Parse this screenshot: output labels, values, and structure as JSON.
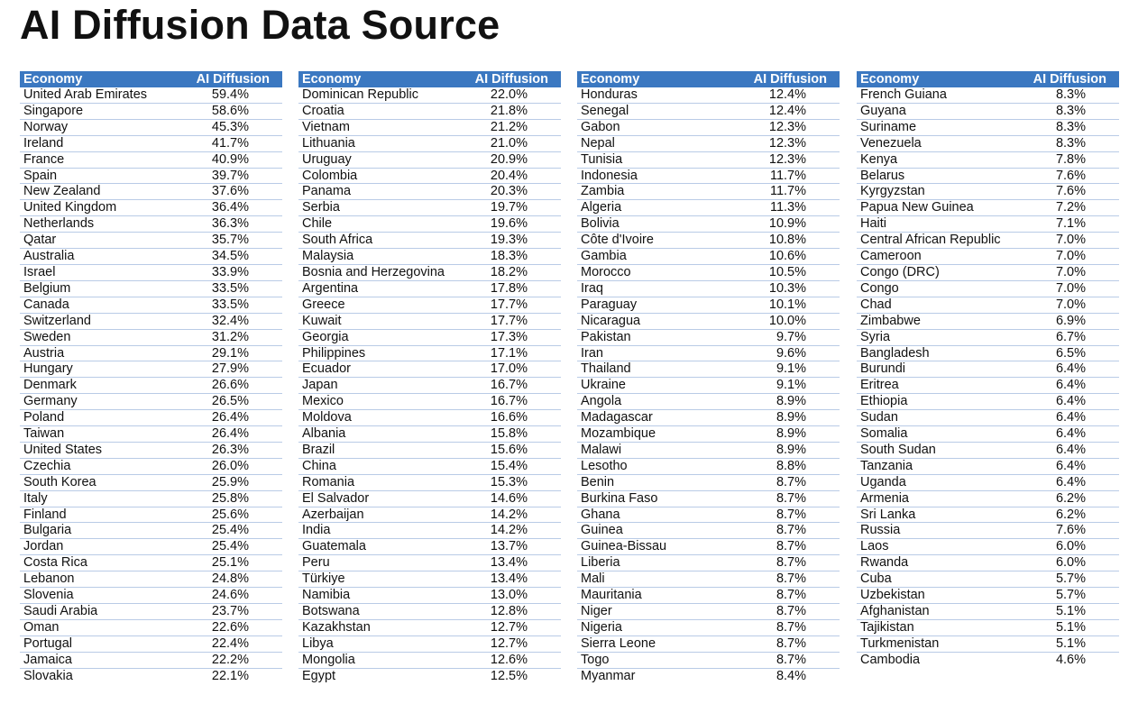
{
  "title": "AI Diffusion Data Source",
  "header": {
    "economy": "Economy",
    "value": "AI Diffusion"
  },
  "colors": {
    "header_bg": "#3b78c1",
    "row_line": "#b9cbe6"
  },
  "tables": [
    [
      [
        "United Arab Emirates",
        "59.4%"
      ],
      [
        "Singapore",
        "58.6%"
      ],
      [
        "Norway",
        "45.3%"
      ],
      [
        "Ireland",
        "41.7%"
      ],
      [
        "France",
        "40.9%"
      ],
      [
        "Spain",
        "39.7%"
      ],
      [
        "New Zealand",
        "37.6%"
      ],
      [
        "United Kingdom",
        "36.4%"
      ],
      [
        "Netherlands",
        "36.3%"
      ],
      [
        "Qatar",
        "35.7%"
      ],
      [
        "Australia",
        "34.5%"
      ],
      [
        "Israel",
        "33.9%"
      ],
      [
        "Belgium",
        "33.5%"
      ],
      [
        "Canada",
        "33.5%"
      ],
      [
        "Switzerland",
        "32.4%"
      ],
      [
        "Sweden",
        "31.2%"
      ],
      [
        "Austria",
        "29.1%"
      ],
      [
        "Hungary",
        "27.9%"
      ],
      [
        "Denmark",
        "26.6%"
      ],
      [
        "Germany",
        "26.5%"
      ],
      [
        "Poland",
        "26.4%"
      ],
      [
        "Taiwan",
        "26.4%"
      ],
      [
        "United States",
        "26.3%"
      ],
      [
        "Czechia",
        "26.0%"
      ],
      [
        "South Korea",
        "25.9%"
      ],
      [
        "Italy",
        "25.8%"
      ],
      [
        "Finland",
        "25.6%"
      ],
      [
        "Bulgaria",
        "25.4%"
      ],
      [
        "Jordan",
        "25.4%"
      ],
      [
        "Costa Rica",
        "25.1%"
      ],
      [
        "Lebanon",
        "24.8%"
      ],
      [
        "Slovenia",
        "24.6%"
      ],
      [
        "Saudi Arabia",
        "23.7%"
      ],
      [
        "Oman",
        "22.6%"
      ],
      [
        "Portugal",
        "22.4%"
      ],
      [
        "Jamaica",
        "22.2%"
      ],
      [
        "Slovakia",
        "22.1%"
      ]
    ],
    [
      [
        "Dominican Republic",
        "22.0%"
      ],
      [
        "Croatia",
        "21.8%"
      ],
      [
        "Vietnam",
        "21.2%"
      ],
      [
        "Lithuania",
        "21.0%"
      ],
      [
        "Uruguay",
        "20.9%"
      ],
      [
        "Colombia",
        "20.4%"
      ],
      [
        "Panama",
        "20.3%"
      ],
      [
        "Serbia",
        "19.7%"
      ],
      [
        "Chile",
        "19.6%"
      ],
      [
        "South Africa",
        "19.3%"
      ],
      [
        "Malaysia",
        "18.3%"
      ],
      [
        "Bosnia and Herzegovina",
        "18.2%"
      ],
      [
        "Argentina",
        "17.8%"
      ],
      [
        "Greece",
        "17.7%"
      ],
      [
        "Kuwait",
        "17.7%"
      ],
      [
        "Georgia",
        "17.3%"
      ],
      [
        "Philippines",
        "17.1%"
      ],
      [
        "Ecuador",
        "17.0%"
      ],
      [
        "Japan",
        "16.7%"
      ],
      [
        "Mexico",
        "16.7%"
      ],
      [
        "Moldova",
        "16.6%"
      ],
      [
        "Albania",
        "15.8%"
      ],
      [
        "Brazil",
        "15.6%"
      ],
      [
        "China",
        "15.4%"
      ],
      [
        "Romania",
        "15.3%"
      ],
      [
        "El Salvador",
        "14.6%"
      ],
      [
        "Azerbaijan",
        "14.2%"
      ],
      [
        "India",
        "14.2%"
      ],
      [
        "Guatemala",
        "13.7%"
      ],
      [
        "Peru",
        "13.4%"
      ],
      [
        "Türkiye",
        "13.4%"
      ],
      [
        "Namibia",
        "13.0%"
      ],
      [
        "Botswana",
        "12.8%"
      ],
      [
        "Kazakhstan",
        "12.7%"
      ],
      [
        "Libya",
        "12.7%"
      ],
      [
        "Mongolia",
        "12.6%"
      ],
      [
        "Egypt",
        "12.5%"
      ]
    ],
    [
      [
        "Honduras",
        "12.4%"
      ],
      [
        "Senegal",
        "12.4%"
      ],
      [
        "Gabon",
        "12.3%"
      ],
      [
        "Nepal",
        "12.3%"
      ],
      [
        "Tunisia",
        "12.3%"
      ],
      [
        "Indonesia",
        "11.7%"
      ],
      [
        "Zambia",
        "11.7%"
      ],
      [
        "Algeria",
        "11.3%"
      ],
      [
        "Bolivia",
        "10.9%"
      ],
      [
        "Côte d'Ivoire",
        "10.8%"
      ],
      [
        "Gambia",
        "10.6%"
      ],
      [
        "Morocco",
        "10.5%"
      ],
      [
        "Iraq",
        "10.3%"
      ],
      [
        "Paraguay",
        "10.1%"
      ],
      [
        "Nicaragua",
        "10.0%"
      ],
      [
        "Pakistan",
        "9.7%"
      ],
      [
        "Iran",
        "9.6%"
      ],
      [
        "Thailand",
        "9.1%"
      ],
      [
        "Ukraine",
        "9.1%"
      ],
      [
        "Angola",
        "8.9%"
      ],
      [
        "Madagascar",
        "8.9%"
      ],
      [
        "Mozambique",
        "8.9%"
      ],
      [
        "Malawi",
        "8.9%"
      ],
      [
        "Lesotho",
        "8.8%"
      ],
      [
        "Benin",
        "8.7%"
      ],
      [
        "Burkina Faso",
        "8.7%"
      ],
      [
        "Ghana",
        "8.7%"
      ],
      [
        "Guinea",
        "8.7%"
      ],
      [
        "Guinea-Bissau",
        "8.7%"
      ],
      [
        "Liberia",
        "8.7%"
      ],
      [
        "Mali",
        "8.7%"
      ],
      [
        "Mauritania",
        "8.7%"
      ],
      [
        "Niger",
        "8.7%"
      ],
      [
        "Nigeria",
        "8.7%"
      ],
      [
        "Sierra Leone",
        "8.7%"
      ],
      [
        "Togo",
        "8.7%"
      ],
      [
        "Myanmar",
        "8.4%"
      ]
    ],
    [
      [
        "French Guiana",
        "8.3%"
      ],
      [
        "Guyana",
        "8.3%"
      ],
      [
        "Suriname",
        "8.3%"
      ],
      [
        "Venezuela",
        "8.3%"
      ],
      [
        "Kenya",
        "7.8%"
      ],
      [
        "Belarus",
        "7.6%"
      ],
      [
        "Kyrgyzstan",
        "7.6%"
      ],
      [
        "Papua New Guinea",
        "7.2%"
      ],
      [
        "Haiti",
        "7.1%"
      ],
      [
        "Central African Republic",
        "7.0%"
      ],
      [
        "Cameroon",
        "7.0%"
      ],
      [
        "Congo (DRC)",
        "7.0%"
      ],
      [
        "Congo",
        "7.0%"
      ],
      [
        "Chad",
        "7.0%"
      ],
      [
        "Zimbabwe",
        "6.9%"
      ],
      [
        "Syria",
        "6.7%"
      ],
      [
        "Bangladesh",
        "6.5%"
      ],
      [
        "Burundi",
        "6.4%"
      ],
      [
        "Eritrea",
        "6.4%"
      ],
      [
        "Ethiopia",
        "6.4%"
      ],
      [
        "Sudan",
        "6.4%"
      ],
      [
        "Somalia",
        "6.4%"
      ],
      [
        "South Sudan",
        "6.4%"
      ],
      [
        "Tanzania",
        "6.4%"
      ],
      [
        "Uganda",
        "6.4%"
      ],
      [
        "Armenia",
        "6.2%"
      ],
      [
        "Sri Lanka",
        "6.2%"
      ],
      [
        "Russia",
        "7.6%"
      ],
      [
        "Laos",
        "6.0%"
      ],
      [
        "Rwanda",
        "6.0%"
      ],
      [
        "Cuba",
        "5.7%"
      ],
      [
        "Uzbekistan",
        "5.7%"
      ],
      [
        "Afghanistan",
        "5.1%"
      ],
      [
        "Tajikistan",
        "5.1%"
      ],
      [
        "Turkmenistan",
        "5.1%"
      ],
      [
        "Cambodia",
        "4.6%"
      ]
    ]
  ]
}
